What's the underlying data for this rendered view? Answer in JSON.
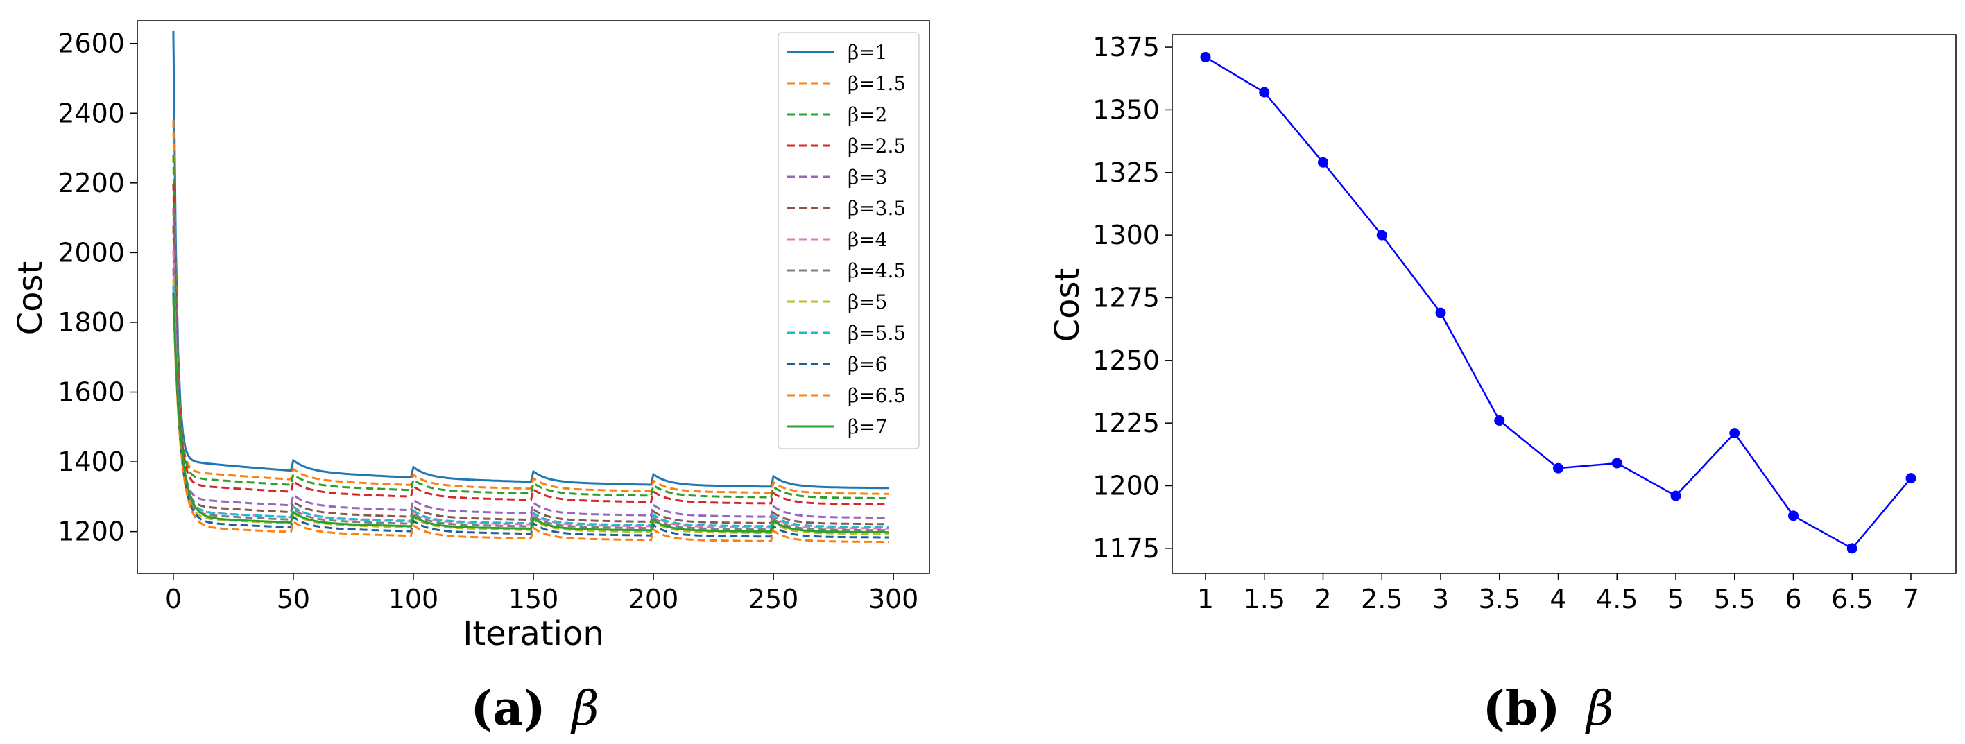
{
  "chart_data": [
    {
      "type": "line",
      "xlabel": "Iteration",
      "ylabel": "Cost",
      "xlim": [
        -15,
        315
      ],
      "ylim": [
        1080,
        2665
      ],
      "x_ticks": [
        0,
        50,
        100,
        150,
        200,
        250,
        300
      ],
      "y_ticks": [
        1200,
        1400,
        1600,
        1800,
        2000,
        2200,
        2400,
        2600
      ],
      "grid": false,
      "legend_position": "top-right",
      "reset_period": 50,
      "series": [
        {
          "name": "β=1",
          "color": "#1f77b4",
          "style": "solid",
          "start": 2600,
          "end": 1312
        },
        {
          "name": "β=1.5",
          "color": "#ff7f0e",
          "style": "dashed",
          "start": 2350,
          "end": 1297
        },
        {
          "name": "β=2",
          "color": "#2ca02c",
          "style": "dashed",
          "start": 2250,
          "end": 1285
        },
        {
          "name": "β=2.5",
          "color": "#d62728",
          "style": "dashed",
          "start": 2170,
          "end": 1268
        },
        {
          "name": "β=3",
          "color": "#9467bd",
          "style": "dashed",
          "start": 2100,
          "end": 1230
        },
        {
          "name": "β=3.5",
          "color": "#8c564b",
          "style": "dashed",
          "start": 2050,
          "end": 1212
        },
        {
          "name": "β=4",
          "color": "#e377c2",
          "style": "dashed",
          "start": 1980,
          "end": 1200
        },
        {
          "name": "β=4.5",
          "color": "#7f7f7f",
          "style": "dashed",
          "start": 1930,
          "end": 1195
        },
        {
          "name": "β=5",
          "color": "#bcbd22",
          "style": "dashed",
          "start": 1900,
          "end": 1185
        },
        {
          "name": "β=5.5",
          "color": "#17becf",
          "style": "dashed",
          "start": 1880,
          "end": 1205
        },
        {
          "name": "β=6",
          "color": "#1f5f9f",
          "style": "dashed",
          "start": 1860,
          "end": 1175
        },
        {
          "name": "β=6.5",
          "color": "#ff7f0e",
          "style": "dashed",
          "start": 1840,
          "end": 1162
        },
        {
          "name": "β=7",
          "color": "#2ca02c",
          "style": "solid",
          "start": 1850,
          "end": 1190
        }
      ],
      "caption_label": "(a)",
      "caption_symbol": "β"
    },
    {
      "type": "line",
      "ylabel": "Cost",
      "ylim": [
        1165,
        1380
      ],
      "y_ticks": [
        1175,
        1200,
        1225,
        1250,
        1275,
        1300,
        1325,
        1350,
        1375
      ],
      "grid": false,
      "categories": [
        "1",
        "1.5",
        "2",
        "2.5",
        "3",
        "3.5",
        "4",
        "4.5",
        "5",
        "5.5",
        "6",
        "6.5",
        "7"
      ],
      "series": [
        {
          "color": "#0000ff",
          "values": [
            1371,
            1357,
            1329,
            1300,
            1269,
            1226,
            1207,
            1209,
            1196,
            1221,
            1188,
            1175,
            1203
          ]
        }
      ],
      "caption_label": "(b)",
      "caption_symbol": "β"
    }
  ]
}
